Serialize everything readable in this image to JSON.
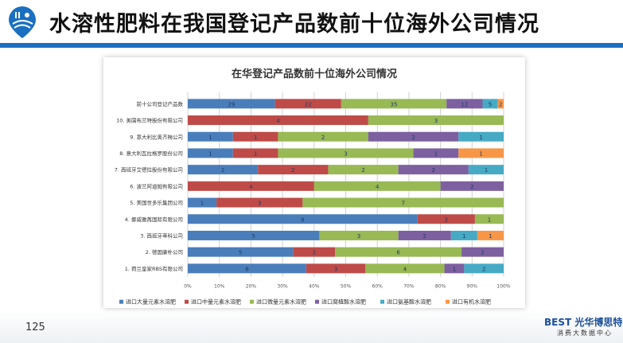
{
  "header": {
    "title": "水溶性肥料在我国登记产品数前十位海外公司情况"
  },
  "footer": {
    "page": "125",
    "brand": "BEST 光华博思特",
    "brand_sub": "消费大数据中心"
  },
  "chart_data": {
    "type": "bar",
    "orientation": "horizontal",
    "stacked": "percent",
    "title": "在华登记产品数前十位海外公司情况",
    "categories": [
      "前十公司登记产品数",
      "10. 美国布兰特股份有限公司",
      "9. 意大利比奥齐梅公司",
      "8. 意大利瓦拉格罗股份公司",
      "7. 西班牙艾德拉股份有限公司",
      "6. 波兰阿道姆有限公司",
      "5. 美国世多乐集团公司",
      "4. 挪威雅苒国际有限公司",
      "3. 西班牙萃科公司",
      "2. 德国康朴公司",
      "1. 荷兰皇家RBS有限公司"
    ],
    "series": [
      {
        "name": "进口大量元素水溶肥",
        "color": "#4a7ebb",
        "values": [
          29,
          0,
          1,
          1,
          2,
          0,
          1,
          8,
          5,
          5,
          6
        ]
      },
      {
        "name": "进口中量元素水溶肥",
        "color": "#be4b48",
        "values": [
          22,
          4,
          1,
          1,
          2,
          4,
          3,
          2,
          0,
          2,
          3
        ]
      },
      {
        "name": "进口微量元素水溶肥",
        "color": "#98b954",
        "values": [
          35,
          3,
          2,
          3,
          2,
          4,
          7,
          1,
          3,
          6,
          4
        ]
      },
      {
        "name": "进口腐植酸水溶肥",
        "color": "#7d60a0",
        "values": [
          12,
          0,
          2,
          1,
          2,
          2,
          0,
          0,
          2,
          2,
          1
        ]
      },
      {
        "name": "进口氨基酸水溶肥",
        "color": "#46aac5",
        "values": [
          5,
          0,
          1,
          0,
          1,
          0,
          0,
          0,
          1,
          0,
          2
        ]
      },
      {
        "name": "进口有机水溶肥",
        "color": "#f79646",
        "values": [
          2,
          0,
          0,
          1,
          0,
          0,
          0,
          0,
          1,
          0,
          0
        ]
      }
    ],
    "xticks": [
      "0%",
      "10%",
      "20%",
      "30%",
      "40%",
      "50%",
      "60%",
      "70%",
      "80%",
      "90%",
      "100%"
    ],
    "xlim": [
      0,
      100
    ],
    "grid": true,
    "legend": "bottom"
  }
}
